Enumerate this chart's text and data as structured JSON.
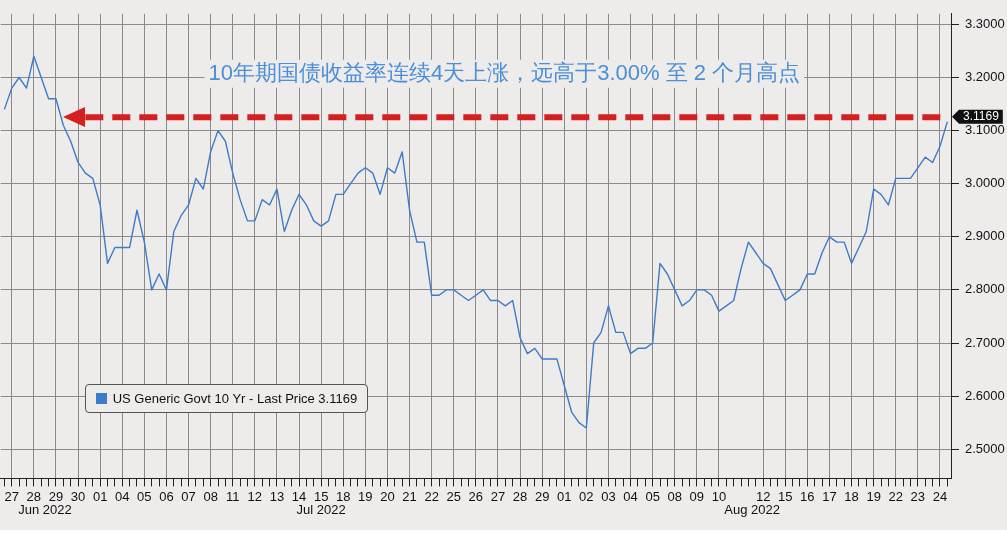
{
  "chart_data": {
    "type": "line",
    "title": "10年期国债收益率连续4天上涨，远高于3.00% 至 2 个月高点",
    "categories": [
      null,
      "27",
      null,
      null,
      "28",
      null,
      null,
      "29",
      null,
      null,
      "30",
      null,
      null,
      "01",
      null,
      null,
      "04",
      null,
      null,
      "05",
      null,
      null,
      "06",
      null,
      null,
      "07",
      null,
      null,
      "08",
      null,
      null,
      "11",
      null,
      null,
      "12",
      null,
      null,
      "13",
      null,
      null,
      "14",
      null,
      null,
      "15",
      null,
      null,
      "18",
      null,
      null,
      "19",
      null,
      null,
      "20",
      null,
      null,
      "21",
      null,
      null,
      "22",
      null,
      null,
      "25",
      null,
      null,
      "26",
      null,
      null,
      "27",
      null,
      null,
      "28",
      null,
      null,
      "29",
      null,
      null,
      "01",
      null,
      null,
      "02",
      null,
      null,
      "03",
      null,
      null,
      "04",
      null,
      null,
      "05",
      null,
      null,
      "08",
      null,
      null,
      "09",
      null,
      null,
      "10",
      null,
      null,
      null,
      null,
      null,
      "12",
      null,
      null,
      "15",
      null,
      null,
      "16",
      null,
      null,
      "17",
      null,
      null,
      "18",
      null,
      null,
      "19",
      null,
      null,
      "22",
      null,
      null,
      "23",
      null,
      null,
      "24",
      null
    ],
    "annotations": [
      "Jun 2022",
      "Jul 2022",
      "Aug 2022"
    ],
    "ylim": [
      2.445,
      3.32
    ],
    "yticks": [
      {
        "value": 2.5,
        "label": "2.5000"
      },
      {
        "value": 2.6,
        "label": "2.6000"
      },
      {
        "value": 2.7,
        "label": "2.7000"
      },
      {
        "value": 2.8,
        "label": "2.8000"
      },
      {
        "value": 2.9,
        "label": "2.9000"
      },
      {
        "value": 3.0,
        "label": "3.0000"
      },
      {
        "value": 3.1,
        "label": "3.1000"
      },
      {
        "value": 3.2,
        "label": "3.2000"
      },
      {
        "value": 3.3,
        "label": "3.3000"
      }
    ],
    "ref_lines": [
      {
        "axis": "y",
        "value": 3.125,
        "color": "#d42020",
        "line_style": "dashed"
      }
    ],
    "grid": true,
    "legend": "bottom left",
    "marker": "none",
    "line_style": "solid",
    "series": [
      {
        "name": "US Generic Govt 10 Yr - Last Price 3.1169",
        "color": "#3d7cc9",
        "values": [
          3.14,
          3.18,
          3.2,
          3.18,
          3.24,
          3.2,
          3.16,
          3.16,
          3.11,
          3.08,
          3.04,
          3.02,
          3.01,
          2.96,
          2.85,
          2.88,
          2.88,
          2.88,
          2.95,
          2.89,
          2.8,
          2.83,
          2.8,
          2.91,
          2.94,
          2.96,
          3.01,
          2.99,
          3.06,
          3.1,
          3.08,
          3.02,
          2.97,
          2.93,
          2.93,
          2.97,
          2.96,
          2.99,
          2.91,
          2.95,
          2.98,
          2.96,
          2.93,
          2.92,
          2.93,
          2.98,
          2.98,
          3.0,
          3.02,
          3.03,
          3.02,
          2.98,
          3.03,
          3.02,
          3.06,
          2.95,
          2.89,
          2.89,
          2.79,
          2.79,
          2.8,
          2.8,
          2.79,
          2.78,
          2.79,
          2.8,
          2.78,
          2.78,
          2.77,
          2.78,
          2.71,
          2.68,
          2.69,
          2.67,
          2.67,
          2.67,
          2.62,
          2.57,
          2.55,
          2.54,
          2.7,
          2.72,
          2.77,
          2.72,
          2.72,
          2.68,
          2.69,
          2.69,
          2.7,
          2.85,
          2.83,
          2.8,
          2.77,
          2.78,
          2.8,
          2.8,
          2.79,
          2.76,
          2.77,
          2.78,
          2.84,
          2.89,
          2.87,
          2.85,
          2.84,
          2.81,
          2.78,
          2.79,
          2.8,
          2.83,
          2.83,
          2.87,
          2.9,
          2.89,
          2.89,
          2.85,
          2.88,
          2.91,
          2.99,
          2.98,
          2.96,
          3.01,
          3.01,
          3.01,
          3.03,
          3.05,
          3.04,
          3.07,
          3.1169
        ],
        "value_labels": [
          null,
          null,
          null,
          null,
          null,
          null,
          null,
          null,
          null,
          null,
          null,
          null,
          null,
          null,
          null,
          null,
          null,
          null,
          null,
          null,
          null,
          null,
          null,
          null,
          null,
          null,
          null,
          null,
          null,
          null,
          null,
          null,
          null,
          null,
          null,
          null,
          null,
          null,
          null,
          null,
          null,
          null,
          null,
          null,
          null,
          null,
          null,
          null,
          null,
          null,
          null,
          null,
          null,
          null,
          null,
          null,
          null,
          null,
          null,
          null,
          null,
          null,
          null,
          null,
          null,
          null,
          null,
          null,
          null,
          null,
          null,
          null,
          null,
          null,
          null,
          null,
          null,
          null,
          null,
          null,
          null,
          null,
          null,
          null,
          null,
          null,
          null,
          null,
          null,
          null,
          null,
          null,
          null,
          null,
          null,
          null,
          null,
          null,
          null,
          null,
          null,
          null,
          null,
          null,
          null,
          null,
          null,
          null,
          null,
          null,
          null,
          null,
          null,
          null,
          null,
          null,
          null,
          null,
          null,
          null,
          null,
          null,
          null,
          null,
          null,
          null,
          null,
          null,
          "3.1169"
        ]
      }
    ]
  }
}
